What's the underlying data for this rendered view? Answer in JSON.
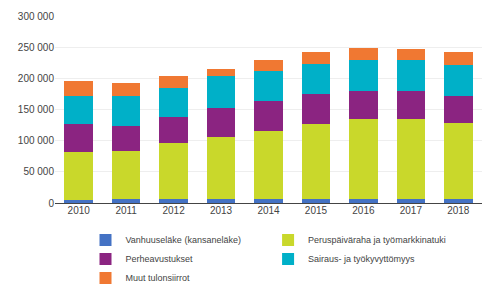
{
  "chart_data": {
    "type": "bar",
    "stacked": true,
    "categories": [
      "2010",
      "2011",
      "2012",
      "2013",
      "2014",
      "2015",
      "2016",
      "2017",
      "2018"
    ],
    "series": [
      {
        "name": "Vanhuuseläke (kansaneläke)",
        "color": "#4472C4",
        "values": [
          5000,
          6000,
          6000,
          6000,
          6000,
          7000,
          7000,
          7000,
          7000
        ]
      },
      {
        "name": "Peruspäiväraha ja työmarkkinatuki",
        "color": "#C9D82B",
        "values": [
          77000,
          78000,
          90000,
          100000,
          110000,
          120000,
          128000,
          128000,
          122000
        ]
      },
      {
        "name": "Perheavustukset",
        "color": "#8B2481",
        "values": [
          44000,
          40000,
          42000,
          46000,
          48000,
          48000,
          45000,
          45000,
          43000
        ]
      },
      {
        "name": "Sairaus- ja työkyvyttömyys",
        "color": "#00B0C8",
        "values": [
          46000,
          47000,
          46000,
          51000,
          47000,
          48000,
          50000,
          50000,
          50000
        ]
      },
      {
        "name": "Muut tulonsiirrot",
        "color": "#F07832",
        "values": [
          23000,
          22000,
          20000,
          12000,
          18000,
          20000,
          18000,
          17000,
          21000
        ]
      }
    ],
    "ylim": [
      0,
      300000
    ],
    "yticks": [
      0,
      {
        "value": 50000,
        "label": "50 000"
      },
      {
        "value": 100000,
        "label": "100 000"
      },
      {
        "value": 150000,
        "label": "150 000"
      },
      {
        "value": 200000,
        "label": "200 000"
      },
      {
        "value": 250000,
        "label": "250 000"
      },
      {
        "value": 300000,
        "label": "300 000"
      }
    ],
    "grid": true,
    "legend": "bottom"
  }
}
